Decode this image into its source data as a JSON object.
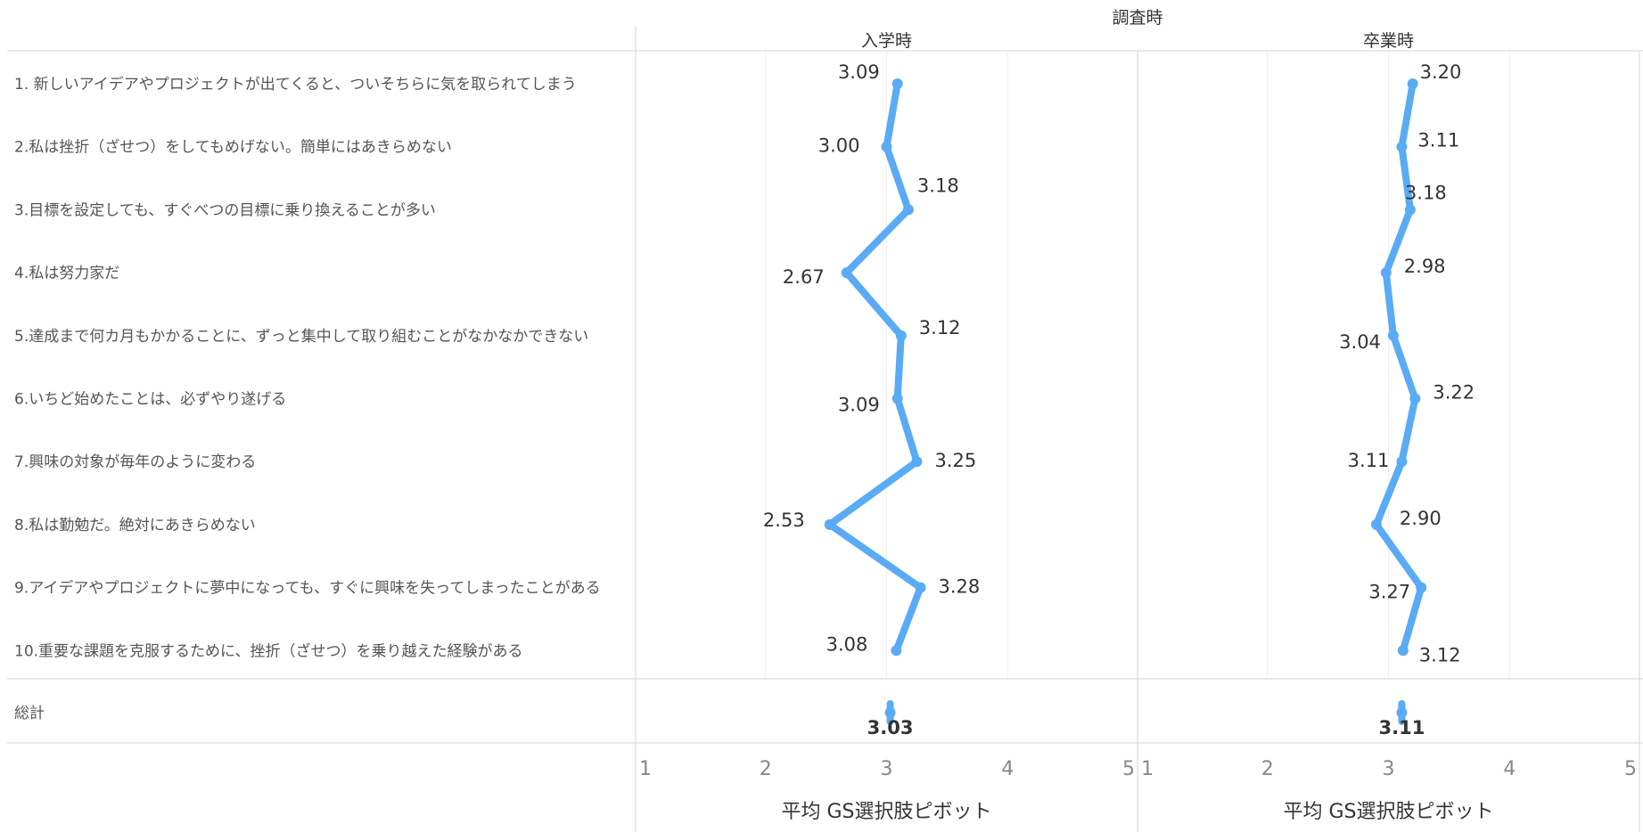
{
  "chart_data": {
    "type": "line",
    "column_header": "調査時",
    "panels": [
      {
        "name": "入学時",
        "values": [
          3.09,
          3.0,
          3.18,
          2.67,
          3.12,
          3.09,
          3.25,
          2.53,
          3.28,
          3.08
        ],
        "value_labels": [
          "3.09",
          "3.00",
          "3.18",
          "2.67",
          "3.12",
          "3.09",
          "3.25",
          "2.53",
          "3.28",
          "3.08"
        ],
        "total": 3.03,
        "total_label": "3.03"
      },
      {
        "name": "卒業時",
        "values": [
          3.2,
          3.11,
          3.18,
          2.98,
          3.04,
          3.22,
          3.11,
          2.9,
          3.27,
          3.12
        ],
        "value_labels": [
          "3.20",
          "3.11",
          "3.18",
          "2.98",
          "3.04",
          "3.22",
          "3.11",
          "2.90",
          "3.27",
          "3.12"
        ],
        "total": 3.11,
        "total_label": "3.11"
      }
    ],
    "categories": [
      "1. 新しいアイデアやプロジェクトが出てくると、ついそちらに気を取られてしまう",
      "2.私は挫折（ざせつ）をしてもめげない。簡単にはあきらめない",
      "3.目標を設定しても、すぐべつの目標に乗り換えることが多い",
      "4.私は努力家だ",
      "5.達成まで何カ月もかかることに、ずっと集中して取り組むことがなかなかできない",
      "6.いちど始めたことは、必ずやり遂げる",
      "7.興味の対象が毎年のように変わる",
      "8.私は勤勉だ。絶対にあきらめない",
      "9.アイデアやプロジェクトに夢中になっても、すぐに興味を失ってしまったことがある",
      "10.重要な課題を克服するために、挫折（ざせつ）を乗り越えた経験がある"
    ],
    "total_row_label": "総計",
    "xlim": [
      1,
      5
    ],
    "xticks": [
      "1",
      "2",
      "3",
      "4",
      "5"
    ],
    "xlabel": "平均 GS選択肢ピボット",
    "grid": true,
    "line_color": "#5aabf5"
  }
}
